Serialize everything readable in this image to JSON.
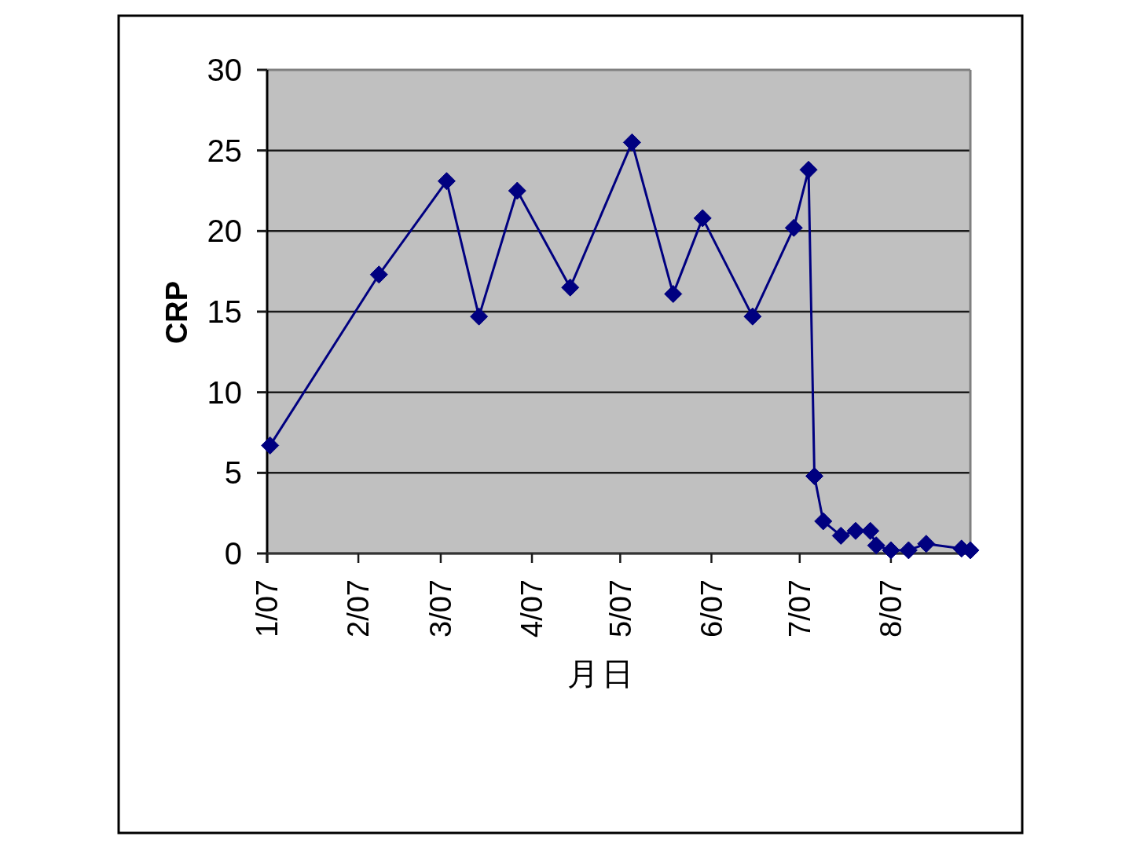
{
  "chart_data": {
    "type": "line",
    "xlabel": "月日",
    "ylabel": "CRP",
    "x": [
      "2007-01-02",
      "2007-02-08",
      "2007-03-03",
      "2007-03-14",
      "2007-03-27",
      "2007-04-14",
      "2007-05-05",
      "2007-05-19",
      "2007-05-29",
      "2007-06-15",
      "2007-06-29",
      "2007-07-04",
      "2007-07-06",
      "2007-07-09",
      "2007-07-15",
      "2007-07-20",
      "2007-07-25",
      "2007-07-27",
      "2007-08-01",
      "2007-08-07",
      "2007-08-13",
      "2007-08-25",
      "2007-08-28"
    ],
    "values": [
      6.7,
      17.3,
      23.1,
      14.7,
      22.5,
      16.5,
      25.5,
      16.1,
      20.8,
      14.7,
      20.2,
      23.8,
      4.8,
      2.0,
      1.1,
      1.4,
      1.4,
      0.5,
      0.2,
      0.2,
      0.6,
      0.3,
      0.2
    ],
    "color": "#000080",
    "xlim": [
      "2007-01-01",
      "2007-08-28"
    ],
    "xticks": [
      {
        "value": "2007-01-01",
        "label": "1/07"
      },
      {
        "value": "2007-02-01",
        "label": "2/07"
      },
      {
        "value": "2007-03-01",
        "label": "3/07"
      },
      {
        "value": "2007-04-01",
        "label": "4/07"
      },
      {
        "value": "2007-05-01",
        "label": "5/07"
      },
      {
        "value": "2007-06-01",
        "label": "6/07"
      },
      {
        "value": "2007-07-01",
        "label": "7/07"
      },
      {
        "value": "2007-08-01",
        "label": "8/07"
      }
    ],
    "ylim": [
      0,
      30
    ],
    "yticks": [
      0,
      5,
      10,
      15,
      20,
      25,
      30
    ],
    "grid": "y",
    "marker": "diamond",
    "line_style": "solid"
  }
}
